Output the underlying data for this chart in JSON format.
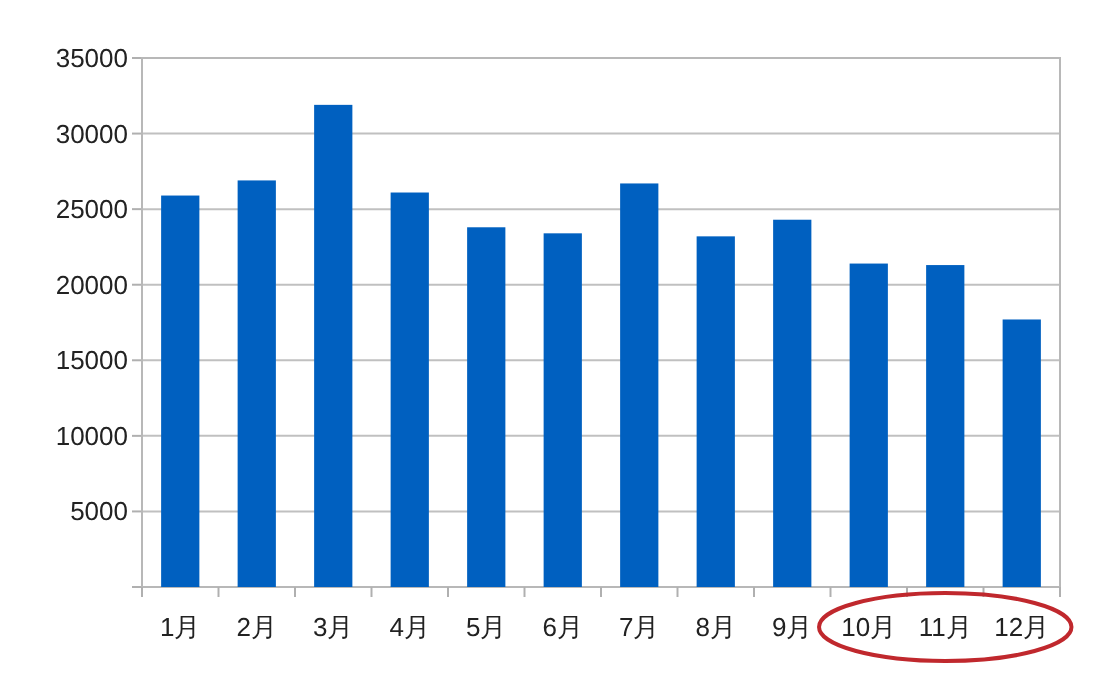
{
  "chart_data": {
    "type": "bar",
    "categories": [
      "1月",
      "2月",
      "3月",
      "4月",
      "5月",
      "6月",
      "7月",
      "8月",
      "9月",
      "10月",
      "11月",
      "12月"
    ],
    "values": [
      25900,
      26900,
      31900,
      26100,
      23800,
      23400,
      26700,
      23200,
      24300,
      21400,
      21300,
      17700
    ],
    "color": "#0060c0",
    "ylim": [
      0,
      35000
    ],
    "yticks": [
      {
        "value": 0,
        "label": null
      },
      5000,
      10000,
      15000,
      20000,
      25000,
      30000,
      35000
    ],
    "grid": "y"
  }
}
